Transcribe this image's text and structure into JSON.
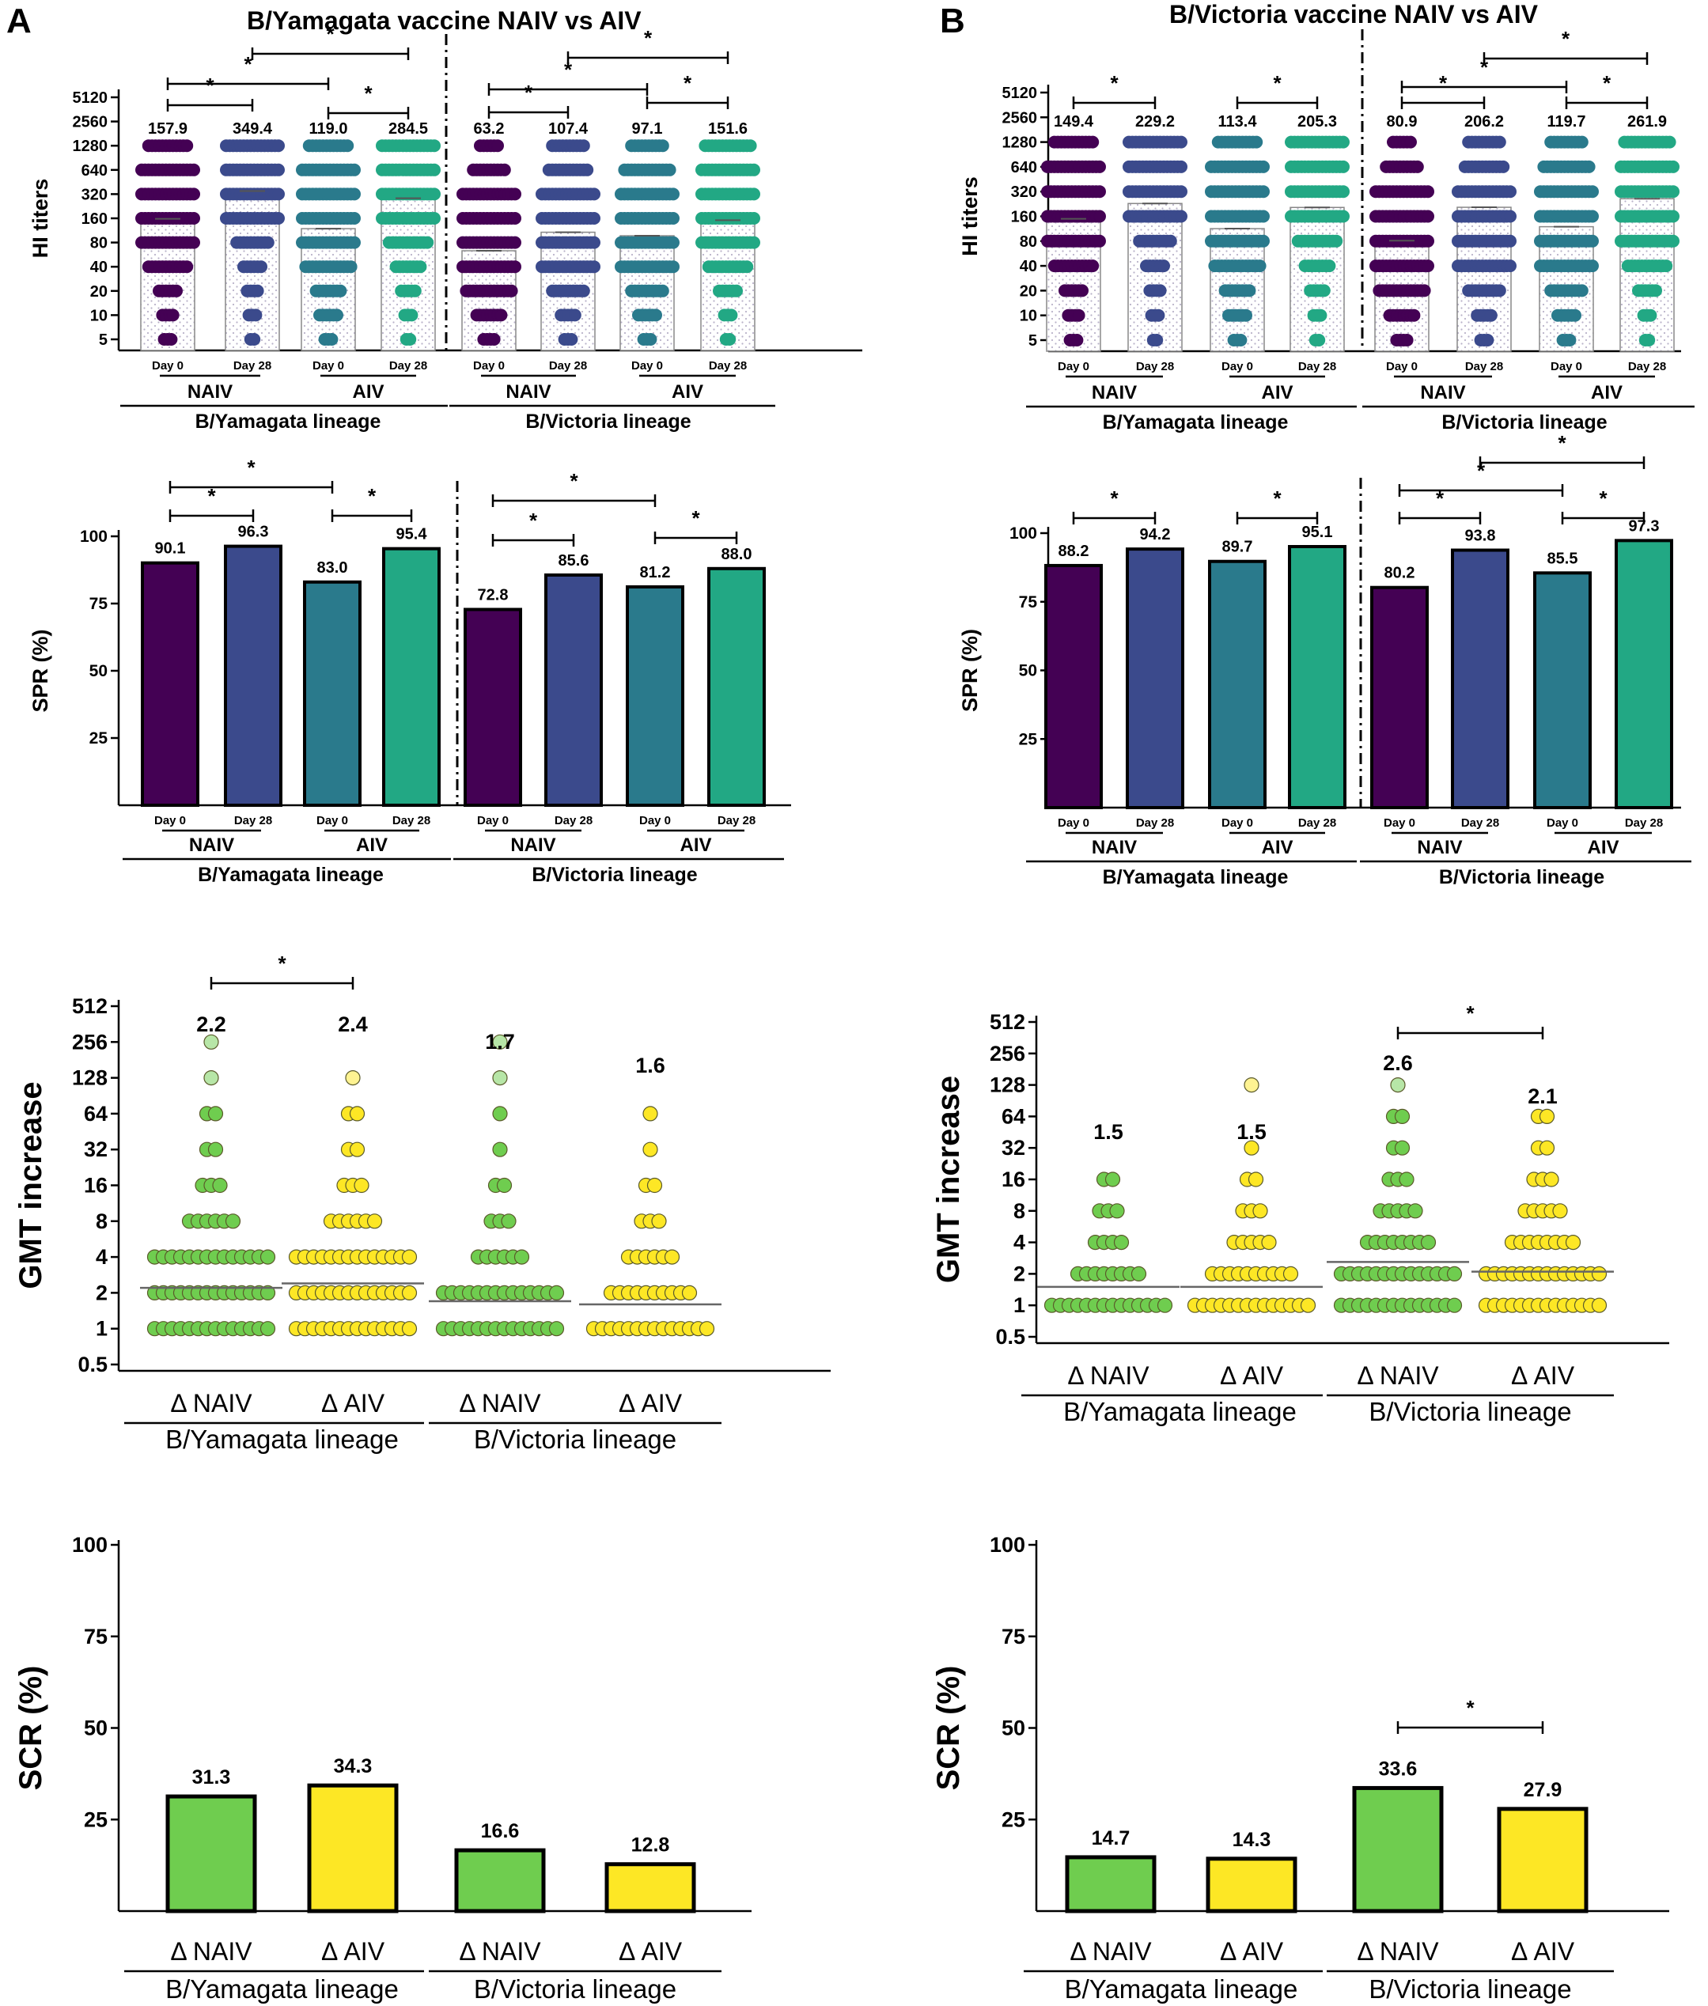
{
  "panels": {
    "A": {
      "label": "A",
      "title": "B/Yamagata vaccine NAIV vs AIV"
    },
    "B": {
      "label": "B",
      "title": "B/Victoria vaccine NAIV vs AIV"
    }
  },
  "colors": {
    "yam_d0": "#440154",
    "yam_d28": "#3b4a8c",
    "vic_d0": "#2a7a8c",
    "vic_d28": "#22a884",
    "green": "#6fcd4f",
    "yellow": "#fde725"
  },
  "chart_data": [
    {
      "id": "A_hi",
      "type": "bar+scatter",
      "panel": "A",
      "ylabel": "HI titers",
      "yscale": "log2",
      "yticks": [
        "5",
        "10",
        "20",
        "40",
        "80",
        "160",
        "320",
        "640",
        "1280",
        "2560",
        "5120"
      ],
      "categories": [
        "Day 0",
        "Day 28",
        "Day 0",
        "Day 28",
        "Day 0",
        "Day 28",
        "Day 0",
        "Day 28"
      ],
      "group_labels": [
        "NAIV",
        "AIV",
        "NAIV",
        "AIV"
      ],
      "lineage_labels": [
        "B/Yamagata lineage",
        "B/Victoria lineage"
      ],
      "values": [
        157.9,
        349.4,
        119.0,
        284.5,
        63.2,
        107.4,
        97.1,
        151.6
      ],
      "value_labels": [
        "157.9",
        "349.4",
        "119.0",
        "284.5",
        "63.2",
        "107.4",
        "97.1",
        "151.6"
      ],
      "significance": [
        {
          "from": 0,
          "to": 1,
          "label": "*"
        },
        {
          "from": 2,
          "to": 3,
          "label": "*"
        },
        {
          "from": 0,
          "to": 2,
          "label": "*"
        },
        {
          "from": 1,
          "to": 3,
          "label": "*"
        },
        {
          "from": 4,
          "to": 5,
          "label": "*"
        },
        {
          "from": 6,
          "to": 7,
          "label": "*"
        },
        {
          "from": 4,
          "to": 6,
          "label": "*"
        },
        {
          "from": 5,
          "to": 7,
          "label": "*"
        }
      ]
    },
    {
      "id": "B_hi",
      "type": "bar+scatter",
      "panel": "B",
      "ylabel": "HI titers",
      "yscale": "log2",
      "yticks": [
        "5",
        "10",
        "20",
        "40",
        "80",
        "160",
        "320",
        "640",
        "1280",
        "2560",
        "5120"
      ],
      "categories": [
        "Day 0",
        "Day 28",
        "Day 0",
        "Day 28",
        "Day 0",
        "Day 28",
        "Day 0",
        "Day 28"
      ],
      "group_labels": [
        "NAIV",
        "AIV",
        "NAIV",
        "AIV"
      ],
      "lineage_labels": [
        "B/Yamagata lineage",
        "B/Victoria lineage"
      ],
      "values": [
        149.4,
        229.2,
        113.4,
        205.3,
        80.9,
        206.2,
        119.7,
        261.9
      ],
      "value_labels": [
        "149.4",
        "229.2",
        "113.4",
        "205.3",
        "80.9",
        "206.2",
        "119.7",
        "261.9"
      ],
      "significance": [
        {
          "from": 0,
          "to": 1,
          "label": "*"
        },
        {
          "from": 2,
          "to": 3,
          "label": "*"
        },
        {
          "from": 4,
          "to": 5,
          "label": "*"
        },
        {
          "from": 6,
          "to": 7,
          "label": "*"
        },
        {
          "from": 4,
          "to": 6,
          "label": "*"
        },
        {
          "from": 5,
          "to": 7,
          "label": "*"
        }
      ]
    },
    {
      "id": "A_spr",
      "type": "bar",
      "panel": "A",
      "ylabel": "SPR (%)",
      "ylim": [
        0,
        100
      ],
      "yticks": [
        "25",
        "50",
        "75",
        "100"
      ],
      "categories": [
        "Day 0",
        "Day 28",
        "Day 0",
        "Day 28",
        "Day 0",
        "Day 28",
        "Day 0",
        "Day 28"
      ],
      "group_labels": [
        "NAIV",
        "AIV",
        "NAIV",
        "AIV"
      ],
      "lineage_labels": [
        "B/Yamagata lineage",
        "B/Victoria lineage"
      ],
      "values": [
        90.1,
        96.3,
        83.0,
        95.4,
        72.8,
        85.6,
        81.2,
        88.0
      ],
      "value_labels": [
        "90.1",
        "96.3",
        "83.0",
        "95.4",
        "72.8",
        "85.6",
        "81.2",
        "88.0"
      ],
      "significance": [
        {
          "from": 0,
          "to": 1,
          "label": "*"
        },
        {
          "from": 2,
          "to": 3,
          "label": "*"
        },
        {
          "from": 0,
          "to": 2,
          "label": "*"
        },
        {
          "from": 4,
          "to": 5,
          "label": "*"
        },
        {
          "from": 6,
          "to": 7,
          "label": "*"
        },
        {
          "from": 4,
          "to": 6,
          "label": "*"
        }
      ]
    },
    {
      "id": "B_spr",
      "type": "bar",
      "panel": "B",
      "ylabel": "SPR (%)",
      "ylim": [
        0,
        100
      ],
      "yticks": [
        "25",
        "50",
        "75",
        "100"
      ],
      "categories": [
        "Day 0",
        "Day 28",
        "Day 0",
        "Day 28",
        "Day 0",
        "Day 28",
        "Day 0",
        "Day 28"
      ],
      "group_labels": [
        "NAIV",
        "AIV",
        "NAIV",
        "AIV"
      ],
      "lineage_labels": [
        "B/Yamagata lineage",
        "B/Victoria lineage"
      ],
      "values": [
        88.2,
        94.2,
        89.7,
        95.1,
        80.2,
        93.8,
        85.5,
        97.3
      ],
      "value_labels": [
        "88.2",
        "94.2",
        "89.7",
        "95.1",
        "80.2",
        "93.8",
        "85.5",
        "97.3"
      ],
      "significance": [
        {
          "from": 0,
          "to": 1,
          "label": "*"
        },
        {
          "from": 2,
          "to": 3,
          "label": "*"
        },
        {
          "from": 4,
          "to": 5,
          "label": "*"
        },
        {
          "from": 6,
          "to": 7,
          "label": "*"
        },
        {
          "from": 4,
          "to": 6,
          "label": "*"
        },
        {
          "from": 5,
          "to": 7,
          "label": "*"
        }
      ]
    },
    {
      "id": "A_gmt",
      "type": "scatter",
      "panel": "A",
      "ylabel": "GMT increase",
      "yscale": "log2",
      "yticks": [
        "0.5",
        "1",
        "2",
        "4",
        "8",
        "16",
        "32",
        "64",
        "128",
        "256",
        "512"
      ],
      "categories": [
        "Δ NAIV",
        "Δ AIV",
        "Δ NAIV",
        "Δ AIV"
      ],
      "lineage_labels": [
        "B/Yamagata lineage",
        "B/Victoria lineage"
      ],
      "values": [
        2.2,
        2.4,
        1.7,
        1.6
      ],
      "value_labels": [
        "2.2",
        "2.4",
        "1.7",
        "1.6"
      ],
      "significance": [
        {
          "from": 0,
          "to": 1,
          "label": "*"
        }
      ]
    },
    {
      "id": "B_gmt",
      "type": "scatter",
      "panel": "B",
      "ylabel": "GMT increase",
      "yscale": "log2",
      "yticks": [
        "0.5",
        "1",
        "2",
        "4",
        "8",
        "16",
        "32",
        "64",
        "128",
        "256",
        "512"
      ],
      "categories": [
        "Δ NAIV",
        "Δ AIV",
        "Δ NAIV",
        "Δ AIV"
      ],
      "lineage_labels": [
        "B/Yamagata lineage",
        "B/Victoria lineage"
      ],
      "values": [
        1.5,
        1.5,
        2.6,
        2.1
      ],
      "value_labels": [
        "1.5",
        "1.5",
        "2.6",
        "2.1"
      ],
      "significance": [
        {
          "from": 2,
          "to": 3,
          "label": "*"
        }
      ]
    },
    {
      "id": "A_scr",
      "type": "bar",
      "panel": "A",
      "ylabel": "SCR (%)",
      "ylim": [
        0,
        100
      ],
      "yticks": [
        "25",
        "50",
        "75",
        "100"
      ],
      "categories": [
        "Δ NAIV",
        "Δ AIV",
        "Δ NAIV",
        "Δ AIV"
      ],
      "lineage_labels": [
        "B/Yamagata lineage",
        "B/Victoria lineage"
      ],
      "values": [
        31.3,
        34.3,
        16.6,
        12.8
      ],
      "value_labels": [
        "31.3",
        "34.3",
        "16.6",
        "12.8"
      ],
      "significance": []
    },
    {
      "id": "B_scr",
      "type": "bar",
      "panel": "B",
      "ylabel": "SCR (%)",
      "ylim": [
        0,
        100
      ],
      "yticks": [
        "25",
        "50",
        "75",
        "100"
      ],
      "categories": [
        "Δ NAIV",
        "Δ AIV",
        "Δ NAIV",
        "Δ AIV"
      ],
      "lineage_labels": [
        "B/Yamagata lineage",
        "B/Victoria lineage"
      ],
      "values": [
        14.7,
        14.3,
        33.6,
        27.9
      ],
      "value_labels": [
        "14.7",
        "14.3",
        "33.6",
        "27.9"
      ],
      "significance": [
        {
          "from": 2,
          "to": 3,
          "label": "*"
        }
      ]
    }
  ]
}
